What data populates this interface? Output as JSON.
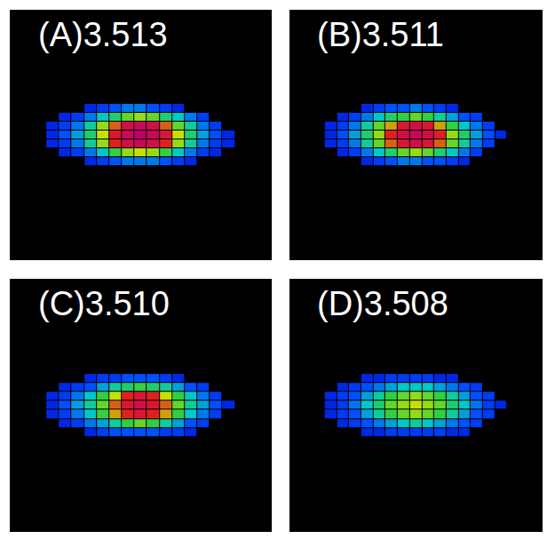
{
  "chart_data": [
    {
      "type": "heatmap",
      "title": "(A)3.513",
      "x": [
        5,
        6.5,
        8,
        9.5,
        11,
        12.5,
        14,
        15.5,
        17,
        18.5,
        20,
        21.5,
        23,
        24.5,
        26
      ],
      "y": [
        11,
        12,
        13,
        14,
        15,
        16,
        17
      ],
      "z": [
        [
          null,
          null,
          null,
          1,
          1.5,
          2,
          2.5,
          2.5,
          2.5,
          2,
          1.5,
          1,
          null,
          null,
          null
        ],
        [
          null,
          1,
          1.5,
          2.5,
          3.5,
          5,
          6,
          6.5,
          6,
          5,
          3.5,
          2.5,
          1.5,
          1,
          null
        ],
        [
          1,
          1.5,
          2.5,
          4,
          6,
          8,
          9,
          9.5,
          9,
          8,
          6,
          4,
          2.5,
          1.5,
          1
        ],
        [
          1,
          2,
          3,
          4.5,
          6.5,
          8.5,
          9.5,
          10,
          9.5,
          8.5,
          6.5,
          4.5,
          3,
          2,
          1
        ],
        [
          1,
          1.5,
          2.5,
          4,
          6,
          7.5,
          9,
          9.5,
          9,
          7.5,
          5.5,
          4,
          2.5,
          1.5,
          null
        ],
        [
          null,
          1,
          1.5,
          2.5,
          3.5,
          4.5,
          5.5,
          6,
          5.5,
          4.5,
          3.5,
          2.5,
          1.5,
          null,
          null
        ],
        [
          null,
          null,
          null,
          1,
          1.5,
          2,
          2.5,
          2.5,
          2,
          1.5,
          1,
          null,
          null,
          null,
          null
        ]
      ],
      "xlim": [
        0,
        31
      ],
      "ylim": [
        0,
        28
      ],
      "zlim": [
        0,
        10
      ],
      "tick_labels": false
    },
    {
      "type": "heatmap",
      "title": "(B)3.511",
      "x": [
        5,
        6.5,
        8,
        9.5,
        11,
        12.5,
        14,
        15.5,
        17,
        18.5,
        20,
        21.5,
        23,
        24.5,
        26
      ],
      "y": [
        11,
        12,
        13,
        14,
        15,
        16,
        17
      ],
      "z": [
        [
          null,
          null,
          null,
          1,
          1.5,
          2,
          2.5,
          2.5,
          2,
          2,
          1.5,
          1,
          null,
          null,
          null
        ],
        [
          null,
          1,
          1.5,
          2.5,
          3.5,
          4.5,
          5.5,
          6,
          5.5,
          4.5,
          3.5,
          2.5,
          1.5,
          null,
          null
        ],
        [
          1,
          1.5,
          2.5,
          4,
          5.5,
          7.5,
          8.5,
          9,
          8.5,
          7.5,
          5.5,
          4,
          2.5,
          1.5,
          null
        ],
        [
          1,
          2,
          3,
          4.5,
          6,
          8,
          9,
          9.5,
          9,
          8,
          6,
          4.5,
          3,
          2,
          1
        ],
        [
          1,
          1.5,
          2.5,
          4,
          5.5,
          7,
          8.5,
          9,
          8.5,
          7,
          5,
          3.5,
          2.5,
          1.5,
          null
        ],
        [
          null,
          1,
          1.5,
          2.5,
          3.5,
          4.5,
          5,
          5.5,
          5,
          4,
          3,
          2,
          1.5,
          null,
          null
        ],
        [
          null,
          null,
          null,
          1,
          1.5,
          2,
          2,
          2.5,
          2,
          1.5,
          1,
          null,
          null,
          null,
          null
        ]
      ],
      "xlim": [
        0,
        31
      ],
      "ylim": [
        0,
        28
      ],
      "zlim": [
        0,
        10
      ],
      "tick_labels": false
    },
    {
      "type": "heatmap",
      "title": "(C)3.510",
      "x": [
        5,
        6.5,
        8,
        9.5,
        11,
        12.5,
        14,
        15.5,
        17,
        18.5,
        20,
        21.5,
        23,
        24.5,
        26
      ],
      "y": [
        11,
        12,
        13,
        14,
        15,
        16,
        17
      ],
      "z": [
        [
          null,
          null,
          null,
          1,
          1.5,
          2,
          2,
          2,
          2,
          1.5,
          1.5,
          1,
          null,
          null,
          null
        ],
        [
          null,
          1,
          1.5,
          2.5,
          3,
          4,
          5,
          5.5,
          5,
          4,
          3,
          2,
          1.5,
          null,
          null
        ],
        [
          1,
          1.5,
          2.5,
          3.5,
          5,
          7,
          8,
          8.5,
          8,
          7,
          5,
          3.5,
          2.5,
          1.5,
          null
        ],
        [
          1,
          2,
          3,
          4,
          5.5,
          7.5,
          8.5,
          9,
          8.5,
          7.5,
          5.5,
          4,
          3,
          2,
          1
        ],
        [
          1,
          1.5,
          2.5,
          3.5,
          5,
          6.5,
          8,
          8.5,
          8,
          6.5,
          5,
          3.5,
          2.5,
          1.5,
          null
        ],
        [
          null,
          1,
          1.5,
          2,
          3,
          4,
          4.5,
          5,
          4.5,
          4,
          3,
          2,
          1.5,
          null,
          null
        ],
        [
          null,
          null,
          null,
          1,
          1.5,
          1.5,
          2,
          2,
          2,
          1.5,
          1,
          null,
          null,
          null,
          null
        ]
      ],
      "xlim": [
        0,
        31
      ],
      "ylim": [
        0,
        28
      ],
      "zlim": [
        0,
        10
      ],
      "tick_labels": false
    },
    {
      "type": "heatmap",
      "title": "(D)3.508",
      "x": [
        5,
        6.5,
        8,
        9.5,
        11,
        12.5,
        14,
        15.5,
        17,
        18.5,
        20,
        21.5,
        23,
        24.5,
        26
      ],
      "y": [
        11,
        12,
        13,
        14,
        15,
        16,
        17
      ],
      "z": [
        [
          null,
          null,
          null,
          1,
          1,
          1.5,
          1.5,
          1.5,
          1.5,
          1.5,
          1,
          1,
          null,
          null,
          null
        ],
        [
          null,
          1,
          1.5,
          2,
          2.5,
          3,
          3.5,
          4,
          3.5,
          3,
          2.5,
          2,
          1.5,
          null,
          null
        ],
        [
          1,
          1.5,
          2,
          3,
          4,
          5,
          5.5,
          6,
          5.5,
          5,
          4,
          3,
          2,
          1.5,
          null
        ],
        [
          1,
          1.5,
          2.5,
          3.5,
          4.5,
          5.5,
          6,
          6.5,
          6,
          5.5,
          4.5,
          3.5,
          2.5,
          1.5,
          1
        ],
        [
          1,
          1.5,
          2,
          3,
          4,
          5,
          5.5,
          6,
          5.5,
          5,
          4,
          3,
          2,
          1.5,
          null
        ],
        [
          null,
          1,
          1.5,
          2,
          2.5,
          3,
          3.5,
          3.5,
          3.5,
          3,
          2.5,
          2,
          1.5,
          null,
          null
        ],
        [
          null,
          null,
          null,
          1,
          1,
          1.5,
          1.5,
          1.5,
          1.5,
          1,
          1,
          null,
          null,
          null,
          null
        ]
      ],
      "xlim": [
        0,
        31
      ],
      "ylim": [
        0,
        28
      ],
      "zlim": [
        0,
        10
      ],
      "tick_labels": false
    }
  ]
}
